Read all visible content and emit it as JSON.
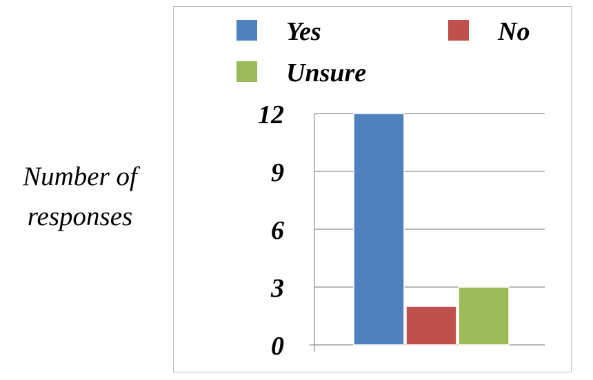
{
  "chart_data": {
    "type": "bar",
    "categories": [
      ""
    ],
    "series": [
      {
        "name": "Yes",
        "values": [
          12
        ],
        "color": "#4F81BD"
      },
      {
        "name": "No",
        "values": [
          2
        ],
        "color": "#C0504D"
      },
      {
        "name": "Unsure",
        "values": [
          3
        ],
        "color": "#9BBB59"
      }
    ],
    "title": "",
    "xlabel": "",
    "ylabel_lines": [
      "Number of",
      "responses"
    ],
    "ylim": [
      0,
      12
    ],
    "yticks": [
      "0",
      "3",
      "6",
      "9",
      "12"
    ],
    "grid": true,
    "legend_position": "top"
  }
}
